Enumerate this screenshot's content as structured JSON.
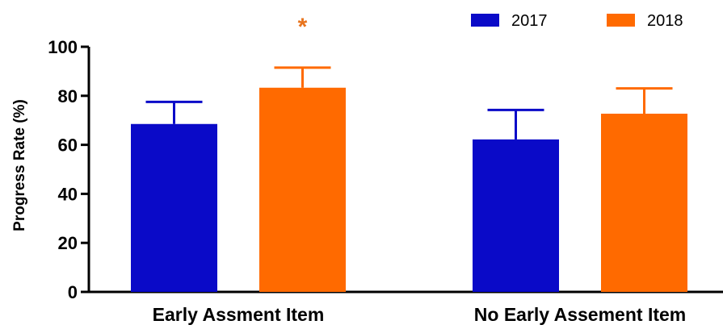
{
  "chart_data": {
    "type": "bar",
    "title": "",
    "xlabel": "",
    "ylabel": "Progress Rate  (%)",
    "ylim": [
      0,
      100
    ],
    "yticks": [
      0,
      20,
      40,
      60,
      80,
      100
    ],
    "categories": [
      "Early Assment Item",
      "No Early Assement Item"
    ],
    "series": [
      {
        "name": "2017",
        "color": "#0a0ac8",
        "values": [
          68.5,
          62.2
        ],
        "errors": [
          9.0,
          12.0
        ]
      },
      {
        "name": "2018",
        "color": "#ff6a00",
        "values": [
          83.3,
          72.7
        ],
        "errors": [
          8.2,
          10.3
        ]
      }
    ],
    "annotations": [
      {
        "text": "*",
        "category_index": 0,
        "series_index": 1,
        "color": "#e8741e"
      }
    ],
    "legend_position": "top-right",
    "grid": false
  }
}
